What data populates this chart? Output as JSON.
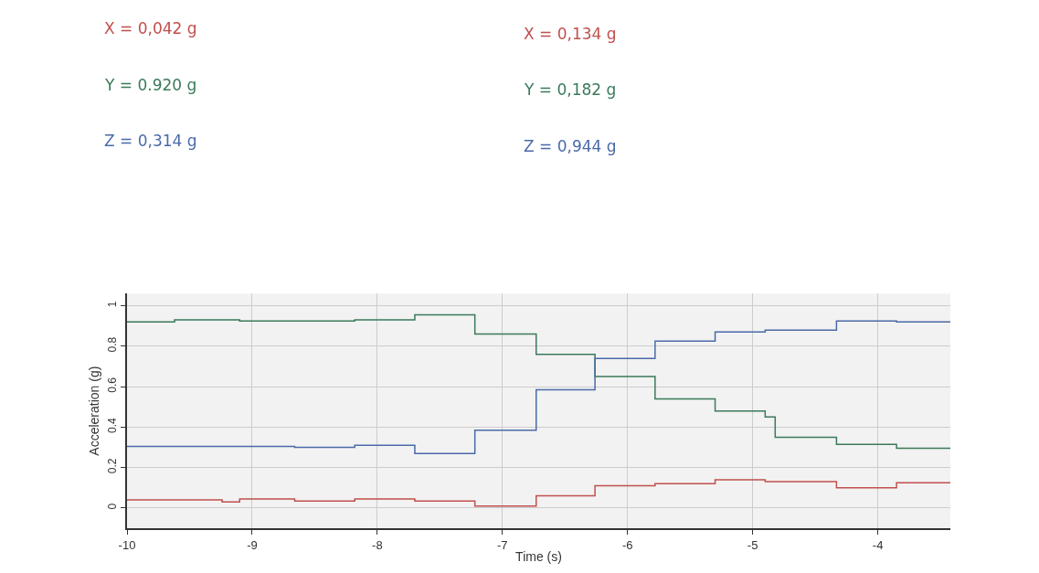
{
  "chart_data": {
    "type": "step",
    "xlabel": "Time (s)",
    "ylabel": "Acceleration (g)",
    "xlim": [
      -10,
      -3.42
    ],
    "xticks": [
      -10,
      -9,
      -8,
      -7,
      -6,
      -5,
      -4
    ],
    "ylim": [
      -0.1,
      1.06
    ],
    "yticks": [
      0,
      0.2,
      0.4,
      0.6,
      0.8,
      1
    ],
    "grid": true,
    "annotations": [
      "X = 0,042 g",
      "Y = 0.920 g",
      "Z = 0,314 g",
      "X = 0,134 g",
      "Y = 0,182 g",
      "Z = 0,944 g"
    ],
    "series": [
      {
        "color": "#c0504d",
        "x": [
          -10,
          -9.62,
          -9.24,
          -9.1,
          -8.66,
          -8.18,
          -7.7,
          -7.22,
          -6.73,
          -6.26,
          -5.78,
          -5.3,
          -4.9,
          -4.82,
          -4.33,
          -3.85,
          -3.42
        ],
        "values": [
          0.04,
          0.04,
          0.03,
          0.045,
          0.035,
          0.045,
          0.035,
          0.01,
          0.06,
          0.11,
          0.12,
          0.14,
          0.13,
          0.13,
          0.1,
          0.125,
          0.125
        ]
      },
      {
        "color": "#3a7a5a",
        "x": [
          -10,
          -9.62,
          -9.24,
          -9.1,
          -8.66,
          -8.18,
          -7.7,
          -7.22,
          -6.73,
          -6.26,
          -5.78,
          -5.3,
          -4.9,
          -4.82,
          -4.33,
          -3.85,
          -3.42
        ],
        "values": [
          0.92,
          0.93,
          0.93,
          0.925,
          0.925,
          0.93,
          0.955,
          0.86,
          0.76,
          0.65,
          0.54,
          0.48,
          0.45,
          0.35,
          0.315,
          0.295,
          0.295
        ]
      },
      {
        "color": "#4a6aa8",
        "x": [
          -10,
          -9.62,
          -9.24,
          -9.1,
          -8.66,
          -8.18,
          -7.7,
          -7.22,
          -6.73,
          -6.26,
          -5.78,
          -5.3,
          -4.9,
          -4.82,
          -4.33,
          -3.85,
          -3.42
        ],
        "values": [
          0.305,
          0.305,
          0.305,
          0.305,
          0.3,
          0.31,
          0.27,
          0.385,
          0.585,
          0.74,
          0.825,
          0.87,
          0.88,
          0.88,
          0.925,
          0.92,
          0.92
        ]
      }
    ]
  }
}
